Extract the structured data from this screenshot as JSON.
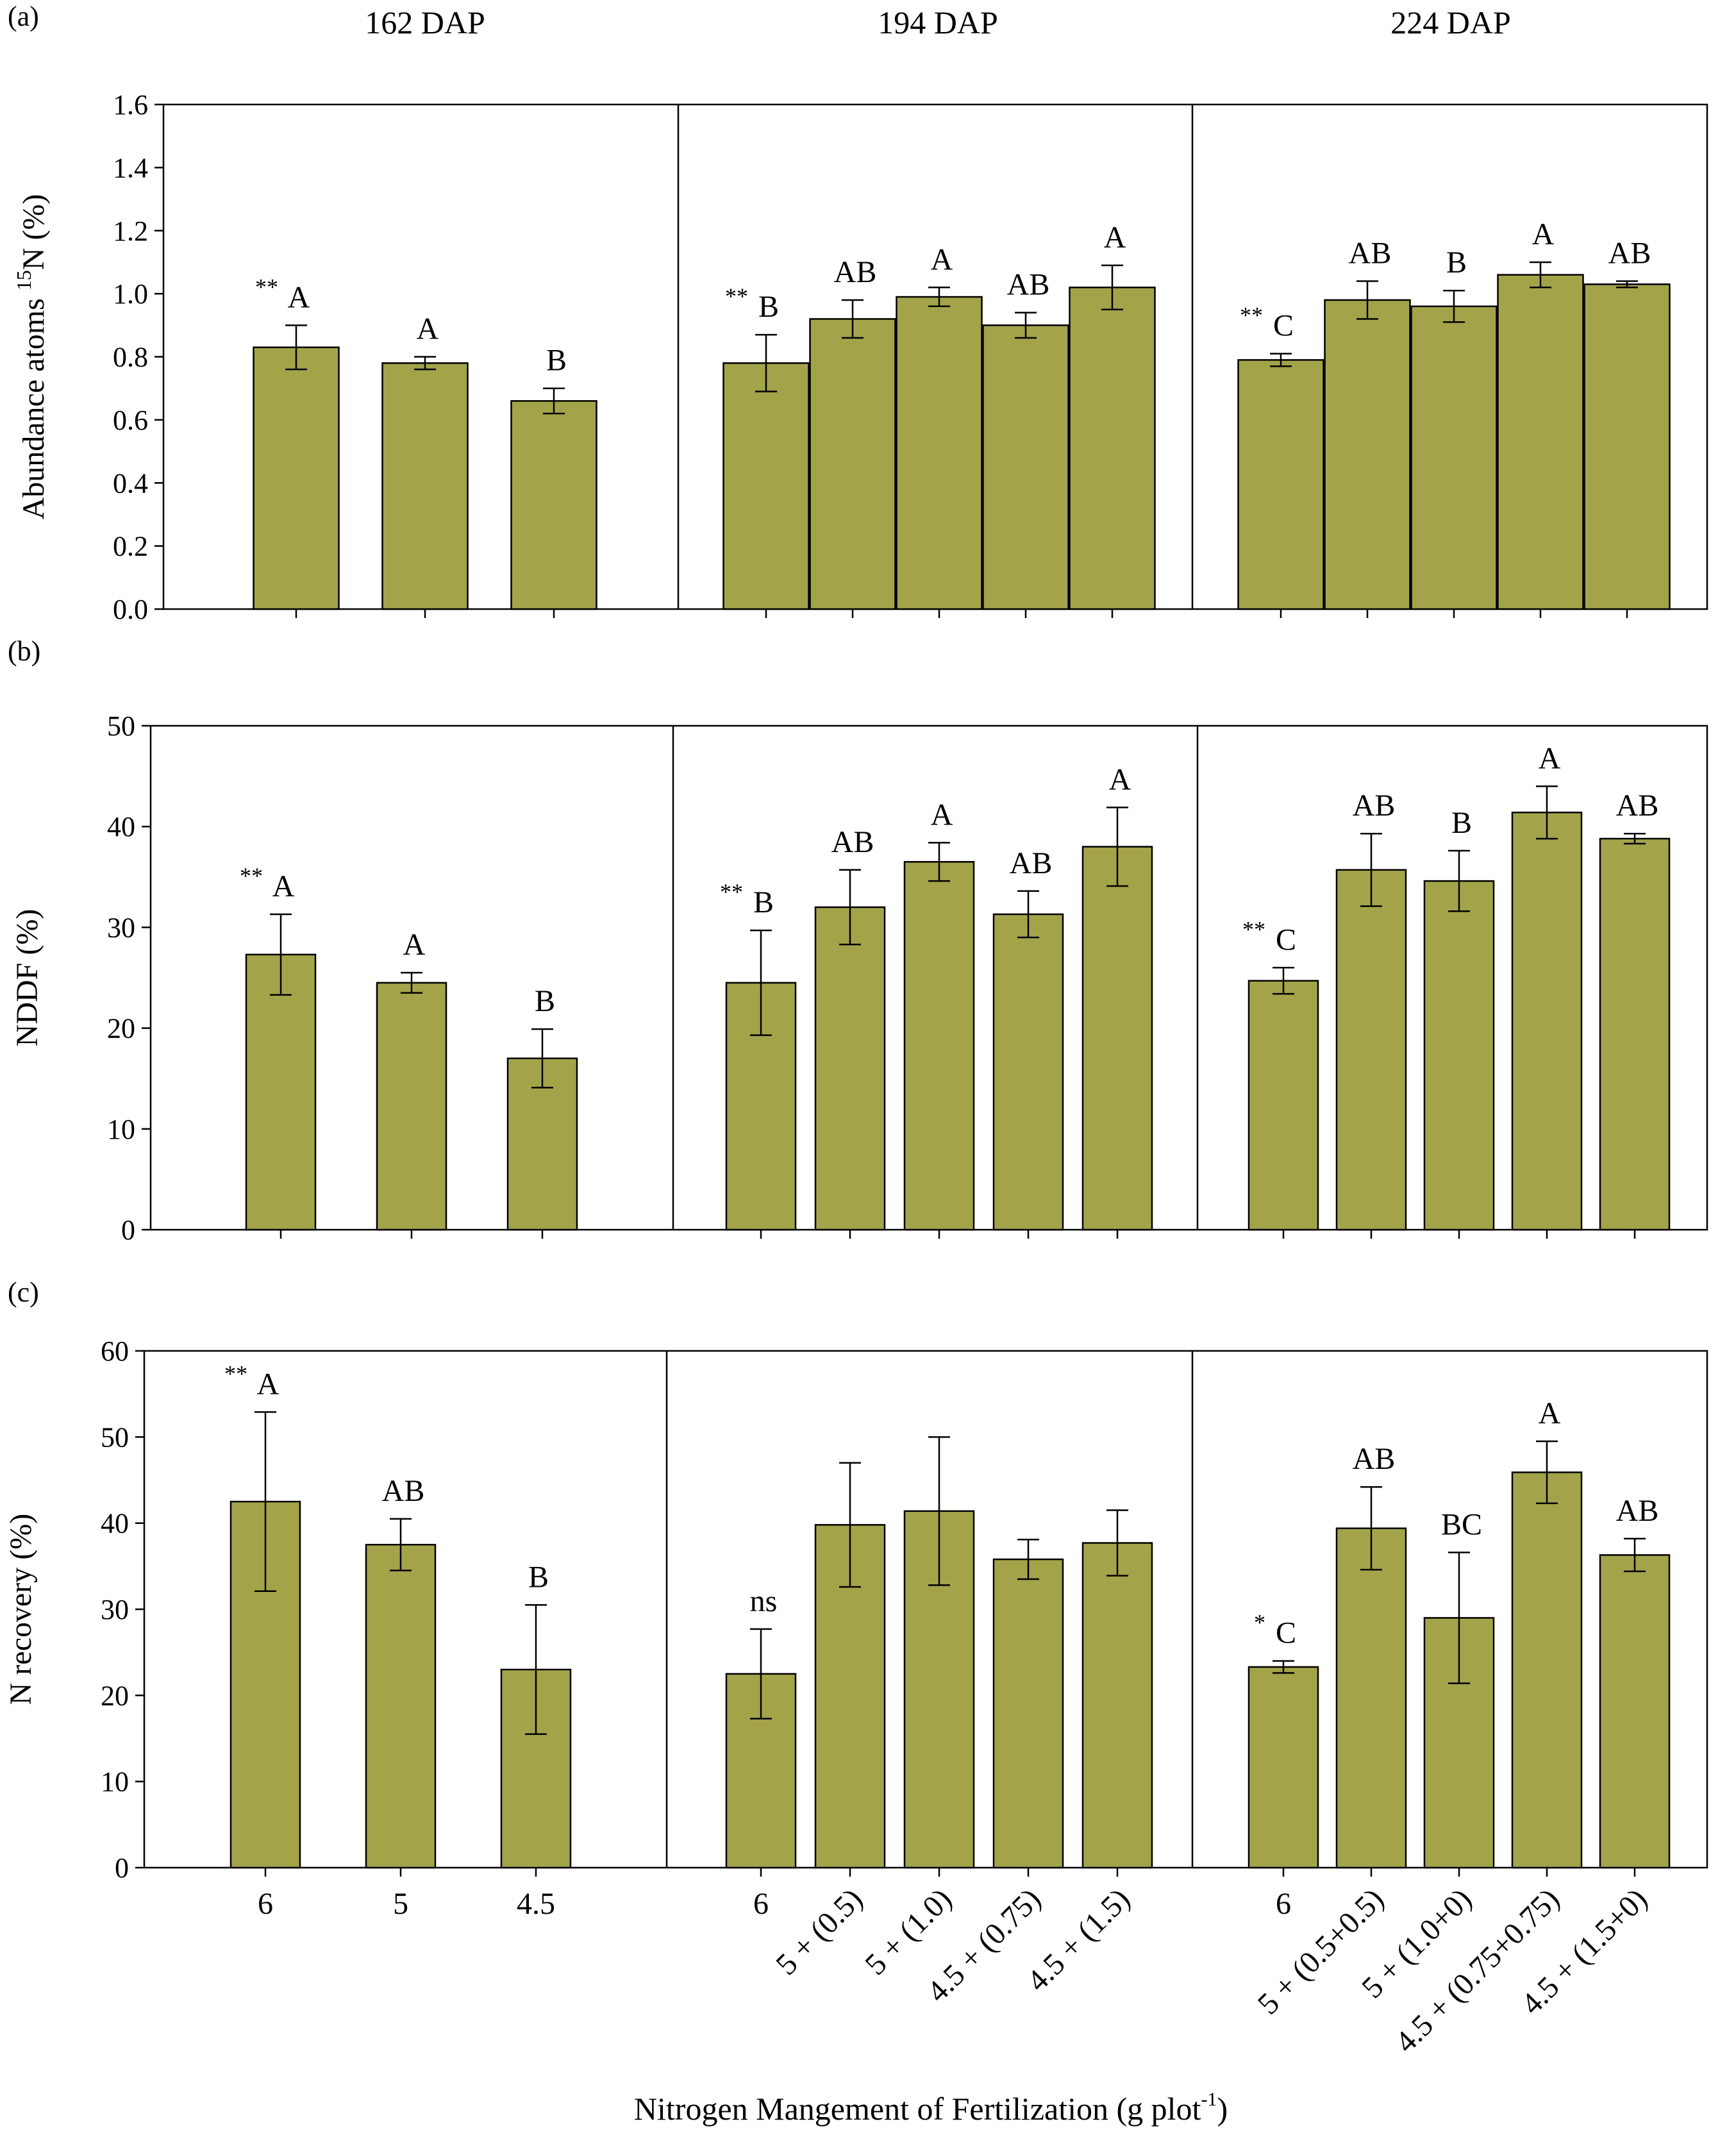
{
  "colors": {
    "bar_fill": "#a3a34a",
    "bar_stroke": "#000000",
    "axis": "#000000"
  },
  "group_titles": [
    "162 DAP",
    "194 DAP",
    "224 DAP"
  ],
  "x_axis_title": "Nitrogen Mangement of Fertilization (g plot",
  "x_axis_title_sup": "-1",
  "x_axis_title_end": ")",
  "x_tick_labels": [
    [
      "6",
      "5",
      "4.5"
    ],
    [
      "6",
      "5 + (0.5)",
      "5 + (1.0)",
      "4.5 + (0.75)",
      "4.5 + (1.5)"
    ],
    [
      "6",
      "5 + (0.5+0.5)",
      "5 + (1.0+0)",
      "4.5 + (0.75+0.75)",
      "4.5 + (1.5+0)"
    ]
  ],
  "chart_data": [
    {
      "type": "bar",
      "panel_label": "(a)",
      "ylabel": "Abundance atoms ",
      "ylabel_sup": "15",
      "ylabel_end": "N (%)",
      "ylim": [
        0,
        1.6
      ],
      "yticks": [
        "0.0",
        "0.2",
        "0.4",
        "0.6",
        "0.8",
        "1.0",
        "1.2",
        "1.4",
        "1.6"
      ],
      "groups": [
        {
          "name": "162 DAP",
          "values": [
            0.83,
            0.78,
            0.66
          ],
          "errors": [
            0.07,
            0.02,
            0.04
          ],
          "sig": [
            "**",
            "",
            ""
          ],
          "letters": [
            "A",
            "A",
            "B"
          ]
        },
        {
          "name": "194 DAP",
          "values": [
            0.78,
            0.92,
            0.99,
            0.9,
            1.02
          ],
          "errors": [
            0.09,
            0.06,
            0.03,
            0.04,
            0.07
          ],
          "sig": [
            "**",
            "",
            "",
            "",
            ""
          ],
          "letters": [
            "B",
            "AB",
            "A",
            "AB",
            "A"
          ]
        },
        {
          "name": "224 DAP",
          "values": [
            0.79,
            0.98,
            0.96,
            1.06,
            1.03
          ],
          "errors": [
            0.02,
            0.06,
            0.05,
            0.04,
            0.01
          ],
          "sig": [
            "**",
            "",
            "",
            "",
            ""
          ],
          "letters": [
            "C",
            "AB",
            "B",
            "A",
            "AB"
          ]
        }
      ]
    },
    {
      "type": "bar",
      "panel_label": "(b)",
      "ylabel": "NDDF (%)",
      "ylabel_sup": "",
      "ylabel_end": "",
      "ylim": [
        0,
        50
      ],
      "yticks": [
        "0",
        "10",
        "20",
        "30",
        "40",
        "50"
      ],
      "groups": [
        {
          "name": "162 DAP",
          "values": [
            27.3,
            24.5,
            17.0
          ],
          "errors": [
            4.0,
            1.0,
            2.9
          ],
          "sig": [
            "**",
            "",
            ""
          ],
          "letters": [
            "A",
            "A",
            "B"
          ]
        },
        {
          "name": "194 DAP",
          "values": [
            24.5,
            32.0,
            36.5,
            31.3,
            38.0
          ],
          "errors": [
            5.2,
            3.7,
            1.9,
            2.3,
            3.9
          ],
          "sig": [
            "**",
            "",
            "",
            "",
            ""
          ],
          "letters": [
            "B",
            "AB",
            "A",
            "AB",
            "A"
          ]
        },
        {
          "name": "224 DAP",
          "values": [
            24.7,
            35.7,
            34.6,
            41.4,
            38.8
          ],
          "errors": [
            1.3,
            3.6,
            3.0,
            2.6,
            0.5
          ],
          "sig": [
            "**",
            "",
            "",
            "",
            ""
          ],
          "letters": [
            "C",
            "AB",
            "B",
            "A",
            "AB"
          ]
        }
      ]
    },
    {
      "type": "bar",
      "panel_label": "(c)",
      "ylabel": "N recovery (%)",
      "ylabel_sup": "",
      "ylabel_end": "",
      "ylim": [
        0,
        60
      ],
      "yticks": [
        "0",
        "10",
        "20",
        "30",
        "40",
        "50",
        "60"
      ],
      "groups": [
        {
          "name": "162 DAP",
          "values": [
            42.5,
            37.5,
            23.0
          ],
          "errors": [
            10.4,
            3.0,
            7.5
          ],
          "sig": [
            "**",
            "",
            ""
          ],
          "letters": [
            "A",
            "AB",
            "B"
          ]
        },
        {
          "name": "194 DAP",
          "values": [
            22.5,
            39.8,
            41.4,
            35.8,
            37.7
          ],
          "errors": [
            5.2,
            7.2,
            8.6,
            2.3,
            3.8
          ],
          "sig": [
            "",
            "",
            "",
            "",
            ""
          ],
          "letters": [
            "ns",
            "",
            "",
            "",
            ""
          ]
        },
        {
          "name": "224 DAP",
          "values": [
            23.3,
            39.4,
            29.0,
            45.9,
            36.3
          ],
          "errors": [
            0.7,
            4.8,
            7.6,
            3.6,
            1.9
          ],
          "sig": [
            "*",
            "",
            "",
            "",
            ""
          ],
          "letters": [
            "C",
            "AB",
            "BC",
            "A",
            "AB"
          ]
        }
      ]
    }
  ]
}
